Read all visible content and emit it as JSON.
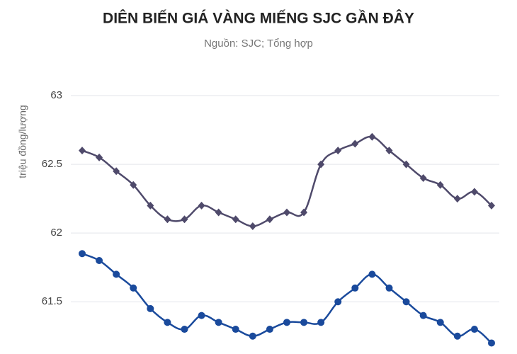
{
  "chart_data": {
    "type": "line",
    "title": "DIÊN BIẾN GIÁ VÀNG MIẾNG SJC GẦN ĐÂY",
    "subtitle": "Nguồn: SJC; Tổng hợp",
    "y_label": "triệu đồng/lượng",
    "categories": [
      null,
      null,
      null,
      null,
      null,
      null,
      null,
      null,
      null,
      null,
      null,
      null,
      null,
      null,
      null,
      null,
      null,
      null,
      null,
      null,
      null,
      null,
      null,
      null,
      null
    ],
    "series": [
      {
        "color": "#4f4a6b",
        "marker": "diamond",
        "values": [
          62.6,
          62.55,
          62.45,
          62.35,
          62.2,
          62.1,
          62.1,
          62.2,
          62.15,
          62.1,
          62.05,
          62.1,
          62.15,
          62.15,
          62.5,
          62.6,
          62.65,
          62.7,
          62.6,
          62.5,
          62.4,
          62.35,
          62.25,
          62.3,
          62.2
        ]
      },
      {
        "color": "#1a4a9c",
        "marker": "circle",
        "values": [
          61.85,
          61.8,
          61.7,
          61.6,
          61.45,
          61.35,
          61.3,
          61.4,
          61.35,
          61.3,
          61.25,
          61.3,
          61.35,
          61.35,
          61.35,
          61.5,
          61.6,
          61.7,
          61.6,
          61.5,
          61.4,
          61.35,
          61.25,
          61.3,
          61.2
        ]
      }
    ],
    "ylim": [
      61.12,
      63
    ],
    "yticks": [
      61.5,
      62,
      62.5,
      63
    ],
    "grid": true
  }
}
